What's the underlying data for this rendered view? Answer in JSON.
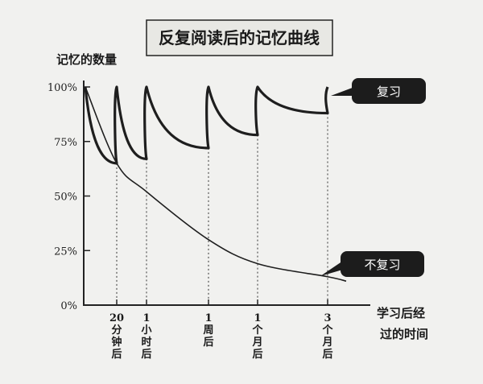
{
  "chart_data": {
    "type": "line",
    "title": "反复阅读后的记忆曲线",
    "ylabel": "记忆的数量",
    "xlabel": "学习后经过的时间",
    "ylim": [
      0,
      100
    ],
    "y_ticks": [
      {
        "value": 0,
        "label": "0%"
      },
      {
        "value": 25,
        "label": "25%"
      },
      {
        "value": 50,
        "label": "50%"
      },
      {
        "value": 75,
        "label": "75%"
      },
      {
        "value": 100,
        "label": "100%"
      }
    ],
    "x_ticks": [
      {
        "id": "t20min",
        "label": "20分钟后",
        "lines": [
          "20",
          "分",
          "钟",
          "后"
        ]
      },
      {
        "id": "t1h",
        "label": "1小时后",
        "lines": [
          "1",
          "小",
          "时",
          "后"
        ]
      },
      {
        "id": "t1w",
        "label": "1周后",
        "lines": [
          "1",
          "周",
          "后"
        ]
      },
      {
        "id": "t1m",
        "label": "1个月后",
        "lines": [
          "1",
          "个",
          "月",
          "后"
        ]
      },
      {
        "id": "t3m",
        "label": "3个月后",
        "lines": [
          "3",
          "个",
          "月",
          "后"
        ]
      }
    ],
    "grid": false,
    "series": [
      {
        "name": "复习",
        "points": [
          {
            "x": "start",
            "y": 100
          },
          {
            "x": "t20min",
            "y": 65
          },
          {
            "x": "t20min",
            "y": 100
          },
          {
            "x": "t1h",
            "y": 67
          },
          {
            "x": "t1h",
            "y": 100
          },
          {
            "x": "t1w",
            "y": 72
          },
          {
            "x": "t1w",
            "y": 100
          },
          {
            "x": "t1m",
            "y": 78
          },
          {
            "x": "t1m",
            "y": 100
          },
          {
            "x": "t3m",
            "y": 88
          },
          {
            "x": "t3m",
            "y": 100
          }
        ]
      },
      {
        "name": "不复习",
        "points": [
          {
            "x": "start",
            "y": 100
          },
          {
            "x": "t20min",
            "y": 65
          },
          {
            "x": "t1h",
            "y": 52
          },
          {
            "x": "t1w",
            "y": 30
          },
          {
            "x": "t1m",
            "y": 19
          },
          {
            "x": "t3m",
            "y": 13
          },
          {
            "x": "end",
            "y": 11
          }
        ]
      }
    ],
    "colors": {
      "line": "#1e1e1e",
      "label_bg": "#1c1c1c",
      "label_text": "#ffffff",
      "title_box": "#e8e8e4"
    }
  }
}
